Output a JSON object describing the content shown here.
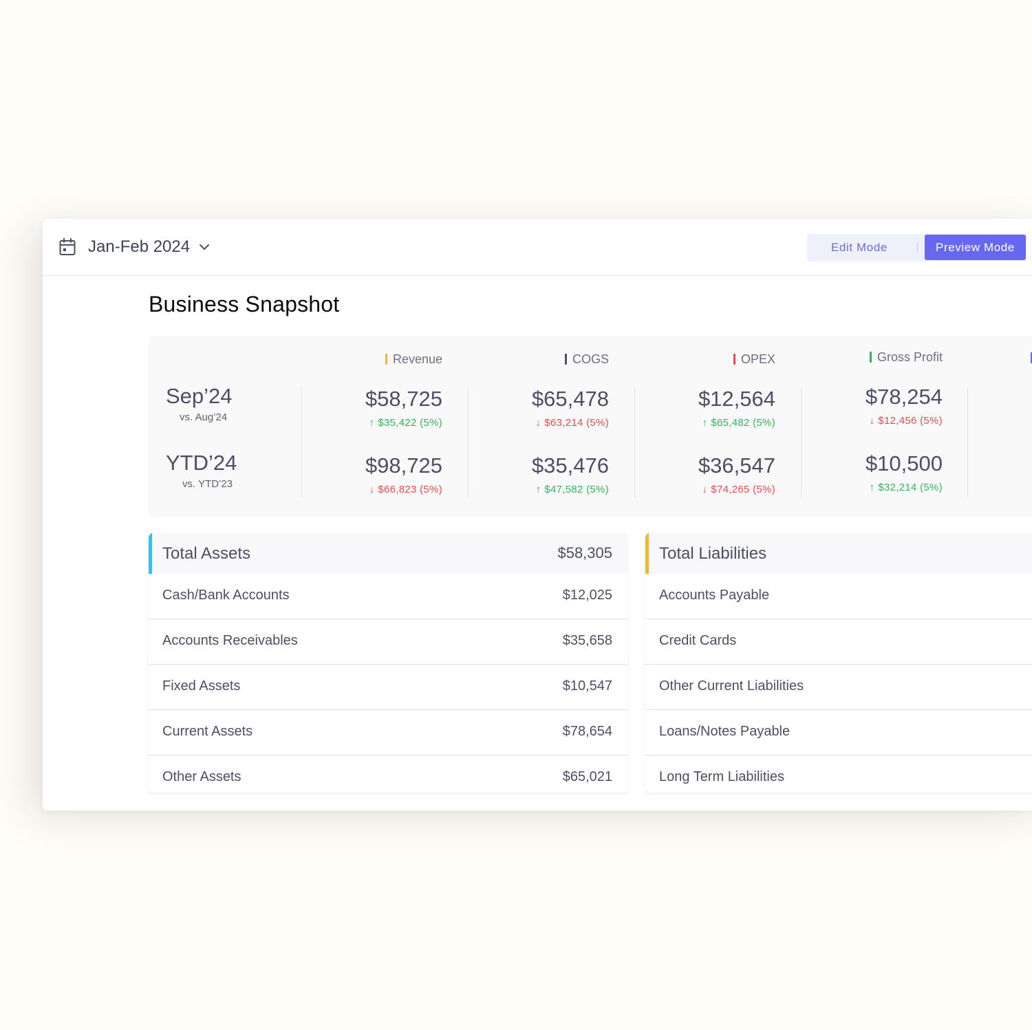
{
  "colors": {
    "page_bg": "#fefdf8",
    "accent": "#6768f0",
    "up": "#2fb658",
    "down": "#ee4a4a",
    "revenue": "#f5b52e",
    "cogs": "#4b4f66",
    "opex": "#ee4a4a",
    "gross_profit": "#2fb658",
    "assets_accent": "#2cc3ef",
    "liabilities_accent": "#f5b52e"
  },
  "header": {
    "date_range": "Jan-Feb 2024",
    "icons": {
      "calendar": "calendar-icon",
      "dropdown": "chevron-down-icon"
    },
    "edit_mode_label": "Edit Mode",
    "preview_mode_label": "Preview Mode",
    "active_mode": "Preview Mode"
  },
  "page_title": "Business Snapshot",
  "kpi": {
    "periods": [
      {
        "label": "Sep’24",
        "comparison": "vs. Aug’24"
      },
      {
        "label": "YTD’24",
        "comparison": "vs. YTD’23"
      }
    ],
    "columns": [
      {
        "name": "Revenue",
        "rows": [
          {
            "value": "$58,725",
            "change": "$35,422 (5%)",
            "direction": "up"
          },
          {
            "value": "$98,725",
            "change": "$66,823 (5%)",
            "direction": "down"
          }
        ]
      },
      {
        "name": "COGS",
        "rows": [
          {
            "value": "$65,478",
            "change": "$63,214 (5%)",
            "direction": "down"
          },
          {
            "value": "$35,476",
            "change": "$47,582 (5%)",
            "direction": "up"
          }
        ]
      },
      {
        "name": "OPEX",
        "rows": [
          {
            "value": "$12,564",
            "change": "$65,482 (5%)",
            "direction": "up"
          },
          {
            "value": "$36,547",
            "change": "$74,265 (5%)",
            "direction": "down"
          }
        ]
      },
      {
        "name": "Gross Profit",
        "rows": [
          {
            "value": "$78,254",
            "change": "$12,456 (5%)",
            "direction": "down"
          },
          {
            "value": "$10,500",
            "change": "$32,214 (5%)",
            "direction": "up"
          }
        ]
      }
    ]
  },
  "assets": {
    "title": "Total Assets",
    "total": "$58,305",
    "rows": [
      {
        "label": "Cash/Bank Accounts",
        "value": "$12,025"
      },
      {
        "label": "Accounts Receivables",
        "value": "$35,658"
      },
      {
        "label": "Fixed Assets",
        "value": "$10,547"
      },
      {
        "label": "Current Assets",
        "value": "$78,654"
      },
      {
        "label": "Other Assets",
        "value": "$65,021"
      }
    ]
  },
  "liabilities": {
    "title": "Total Liabilities",
    "rows": [
      {
        "label": "Accounts Payable"
      },
      {
        "label": "Credit Cards"
      },
      {
        "label": "Other Current Liabilities"
      },
      {
        "label": "Loans/Notes Payable"
      },
      {
        "label": "Long Term Liabilities"
      }
    ]
  }
}
